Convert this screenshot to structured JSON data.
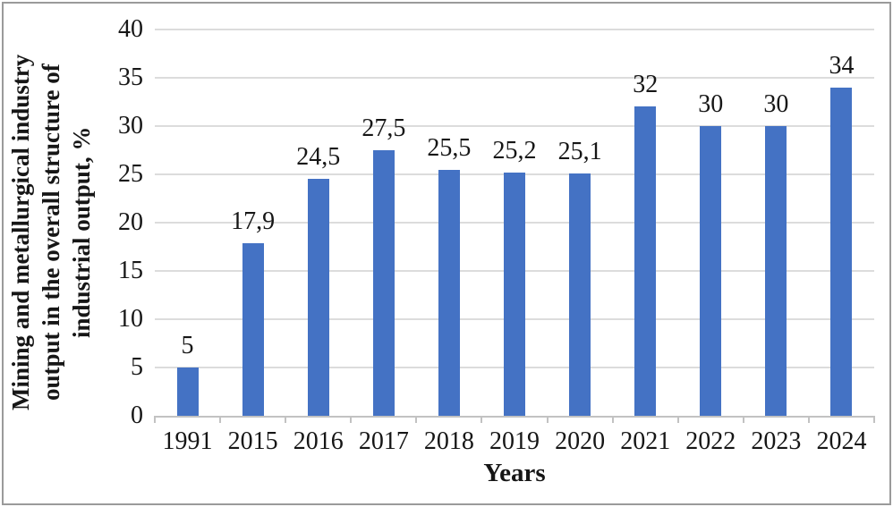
{
  "chart_data": {
    "type": "bar",
    "categories": [
      "1991",
      "2015",
      "2016",
      "2017",
      "2018",
      "2019",
      "2020",
      "2021",
      "2022",
      "2023",
      "2024"
    ],
    "values": [
      5,
      17.9,
      24.5,
      27.5,
      25.5,
      25.2,
      25.1,
      32,
      30,
      30,
      34
    ],
    "value_labels": [
      "5",
      "17,9",
      "24,5",
      "27,5",
      "25,5",
      "25,2",
      "25,1",
      "32",
      "30",
      "30",
      "34"
    ],
    "title": "",
    "xlabel": "Years",
    "ylabel": "Mining and metallurgical industry output in the overall structure of industrial output, %",
    "ylabel_lines": [
      "Mining and metallurgical industry",
      "output in the overall structure of",
      "industrial output, %"
    ],
    "ylim": [
      0,
      40
    ],
    "yticks": [
      0,
      5,
      10,
      15,
      20,
      25,
      30,
      35,
      40
    ],
    "ytick_labels": [
      "0",
      "5",
      "10",
      "15",
      "20",
      "25",
      "30",
      "35",
      "40"
    ],
    "grid": true,
    "legend_position": "none",
    "bar_color": "#4472C4",
    "gridline_color": "#dcdcdc",
    "axis_color": "#c2c2c2",
    "text_color": "#161616",
    "frame_color": "#9a9a9a"
  }
}
